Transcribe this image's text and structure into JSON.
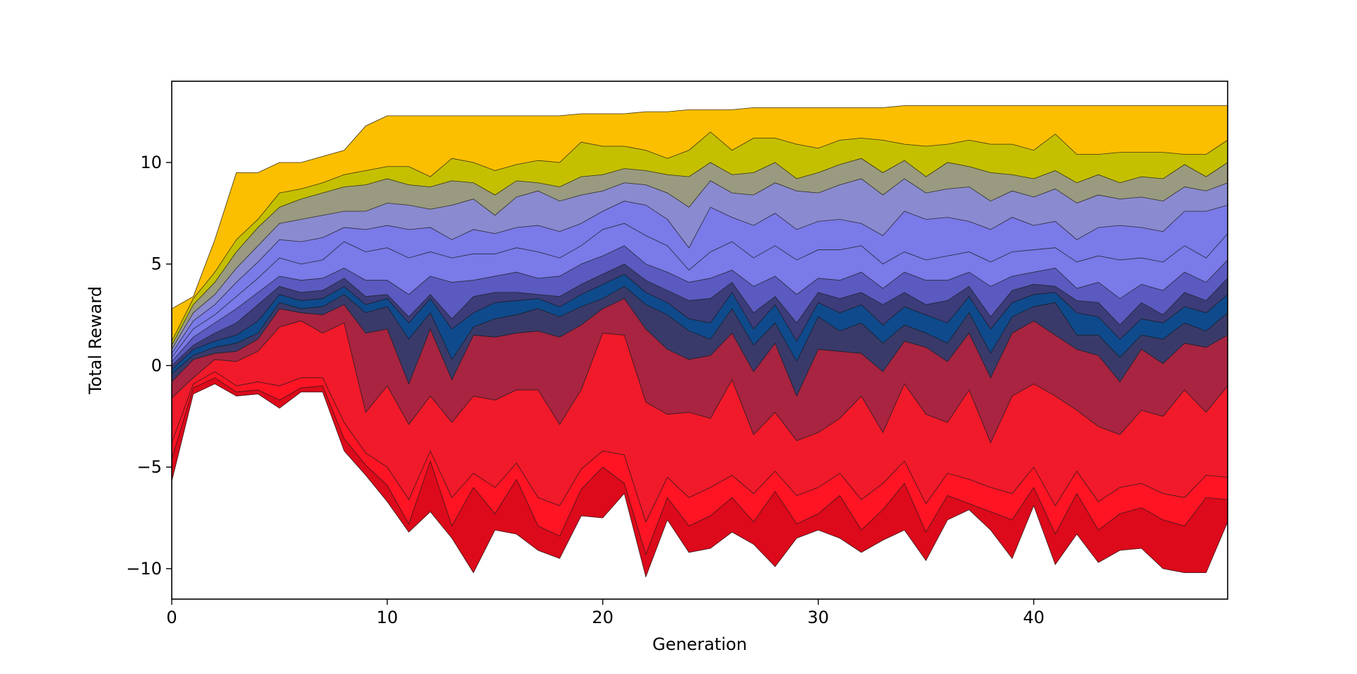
{
  "chart_data": {
    "type": "area",
    "title": "",
    "xlabel": "Generation",
    "ylabel": "Total Reward",
    "xlim": [
      0,
      49
    ],
    "ylim": [
      -11.5,
      14
    ],
    "xticks": [
      0,
      10,
      20,
      30,
      40
    ],
    "yticks": [
      -10,
      -5,
      0,
      5,
      10
    ],
    "xtick_labels": [
      "0",
      "10",
      "20",
      "30",
      "40"
    ],
    "ytick_labels": [
      "−10",
      "−5",
      "0",
      "5",
      "10"
    ],
    "grid": false,
    "legend": "none",
    "band_colors": [
      "#dc0a1a",
      "#ff1424",
      "#f01a2a",
      "#a82440",
      "#3a3a6a",
      "#0f4a8c",
      "#3c3c7a",
      "#5a5ac0",
      "#7a7ae8",
      "#7a7ae8",
      "#8a8ad0",
      "#9a9a80",
      "#c4c000",
      "#fbbf00"
    ],
    "x": [
      0,
      1,
      2,
      3,
      4,
      5,
      6,
      7,
      8,
      9,
      10,
      11,
      12,
      13,
      14,
      15,
      16,
      17,
      18,
      19,
      20,
      21,
      22,
      23,
      24,
      25,
      26,
      27,
      28,
      29,
      30,
      31,
      32,
      33,
      34,
      35,
      36,
      37,
      38,
      39,
      40,
      41,
      42,
      43,
      44,
      45,
      46,
      47,
      48,
      49
    ],
    "percentile_series": [
      {
        "values": [
          -5.7,
          -1.4,
          -0.9,
          -1.5,
          -1.4,
          -2.1,
          -1.3,
          -1.3,
          -4.2,
          -5.4,
          -6.7,
          -8.2,
          -7.2,
          -8.5,
          -10.2,
          -8.1,
          -8.3,
          -9.1,
          -9.5,
          -7.4,
          -7.5,
          -6.3,
          -10.4,
          -7.6,
          -9.2,
          -9.0,
          -8.2,
          -8.8,
          -9.9,
          -8.5,
          -8.1,
          -8.5,
          -9.2,
          -8.6,
          -8.1,
          -9.6,
          -7.6,
          -7.1,
          -8.1,
          -9.5,
          -6.9,
          -9.8,
          -8.3,
          -9.7,
          -9.1,
          -9.0,
          -10.0,
          -10.2,
          -10.2,
          -7.7
        ]
      },
      {
        "values": [
          -4.6,
          -1.1,
          -0.6,
          -1.3,
          -1.2,
          -1.7,
          -1.1,
          -1.0,
          -3.6,
          -4.9,
          -5.9,
          -7.8,
          -4.7,
          -7.9,
          -6.0,
          -7.3,
          -5.6,
          -7.9,
          -8.4,
          -6.1,
          -5.0,
          -5.8,
          -9.3,
          -6.5,
          -7.9,
          -7.4,
          -6.5,
          -7.7,
          -6.2,
          -7.8,
          -7.3,
          -6.4,
          -8.1,
          -7.1,
          -5.8,
          -8.2,
          -6.4,
          -6.8,
          -7.2,
          -7.6,
          -6.0,
          -8.3,
          -6.3,
          -8.1,
          -7.3,
          -7.0,
          -7.6,
          -7.9,
          -6.5,
          -6.6
        ]
      },
      {
        "values": [
          -3.8,
          -0.9,
          -0.3,
          -1.0,
          -0.8,
          -1.0,
          -0.6,
          -0.6,
          -2.8,
          -4.3,
          -5.0,
          -6.6,
          -4.2,
          -6.5,
          -5.3,
          -6.0,
          -4.8,
          -6.5,
          -6.9,
          -5.1,
          -4.2,
          -4.4,
          -7.7,
          -5.5,
          -6.5,
          -6.0,
          -5.4,
          -6.3,
          -5.2,
          -6.4,
          -6.0,
          -5.3,
          -6.6,
          -5.8,
          -4.7,
          -6.8,
          -5.3,
          -5.6,
          -6.0,
          -6.3,
          -5.0,
          -6.9,
          -5.2,
          -6.7,
          -6.0,
          -5.8,
          -6.3,
          -6.5,
          -5.4,
          -5.5
        ]
      },
      {
        "values": [
          -1.6,
          -0.6,
          0.3,
          0.2,
          0.7,
          1.9,
          2.2,
          1.6,
          2.1,
          -2.3,
          -1.0,
          -2.9,
          -1.5,
          -2.8,
          -1.5,
          -1.7,
          -1.2,
          -1.2,
          -2.9,
          -1.2,
          1.6,
          1.5,
          -1.8,
          -2.4,
          -2.3,
          -2.6,
          -0.7,
          -3.4,
          -2.3,
          -3.7,
          -3.3,
          -2.6,
          -1.5,
          -3.3,
          -0.9,
          -2.4,
          -2.8,
          -1.2,
          -3.8,
          -1.5,
          -0.9,
          -1.5,
          -2.2,
          -3.0,
          -3.4,
          -2.2,
          -2.5,
          -1.2,
          -2.3,
          -1.0
        ]
      },
      {
        "values": [
          -0.8,
          0.3,
          0.6,
          0.7,
          1.3,
          2.8,
          2.6,
          2.5,
          3.0,
          1.6,
          1.8,
          -0.9,
          1.8,
          -0.7,
          1.5,
          1.4,
          1.6,
          1.7,
          1.4,
          2.0,
          2.8,
          3.3,
          1.8,
          0.8,
          0.3,
          0.5,
          1.6,
          -0.3,
          1.1,
          -1.5,
          0.8,
          0.7,
          0.6,
          -0.3,
          1.2,
          0.9,
          0.2,
          1.6,
          -0.6,
          1.6,
          2.2,
          1.5,
          0.8,
          0.5,
          -0.8,
          0.8,
          0.1,
          1.1,
          0.9,
          1.5
        ]
      },
      {
        "values": [
          -0.4,
          0.5,
          0.9,
          1.1,
          1.6,
          3.1,
          2.8,
          2.9,
          3.5,
          2.6,
          2.9,
          1.3,
          2.6,
          0.3,
          1.9,
          2.3,
          2.5,
          2.8,
          2.4,
          2.9,
          3.3,
          3.9,
          3.0,
          2.5,
          1.7,
          1.3,
          2.8,
          1.0,
          2.1,
          0.2,
          2.4,
          1.7,
          2.1,
          1.1,
          2.0,
          1.6,
          1.1,
          2.6,
          0.6,
          2.4,
          2.9,
          3.1,
          1.5,
          1.5,
          0.4,
          1.5,
          1.3,
          2.1,
          1.7,
          2.6
        ]
      },
      {
        "values": [
          -0.2,
          0.8,
          1.2,
          1.5,
          2.2,
          3.5,
          3.2,
          3.3,
          3.9,
          3.0,
          3.3,
          2.1,
          3.3,
          1.8,
          2.6,
          3.1,
          3.2,
          3.3,
          2.9,
          3.5,
          4.0,
          4.5,
          3.6,
          3.1,
          2.3,
          2.1,
          3.6,
          1.8,
          3.0,
          1.2,
          3.1,
          2.6,
          3.0,
          2.0,
          2.9,
          2.5,
          2.1,
          3.4,
          1.8,
          3.1,
          3.5,
          3.6,
          2.6,
          2.4,
          1.3,
          2.3,
          2.1,
          2.9,
          2.6,
          3.5
        ]
      },
      {
        "values": [
          0.0,
          1.0,
          1.6,
          2.1,
          3.0,
          3.9,
          3.6,
          3.7,
          4.3,
          3.4,
          3.5,
          2.4,
          3.5,
          2.3,
          3.4,
          3.6,
          3.6,
          3.5,
          3.4,
          4.0,
          4.5,
          5.0,
          4.2,
          3.7,
          3.2,
          3.3,
          4.1,
          2.6,
          3.4,
          2.1,
          3.6,
          3.3,
          3.6,
          3.0,
          3.6,
          3.0,
          3.2,
          3.9,
          2.4,
          3.7,
          4.0,
          3.9,
          3.2,
          3.1,
          2.0,
          3.1,
          2.5,
          3.6,
          3.2,
          4.3
        ]
      },
      {
        "values": [
          0.2,
          1.4,
          2.1,
          2.8,
          3.6,
          4.4,
          4.2,
          4.3,
          4.8,
          4.2,
          4.2,
          3.5,
          4.4,
          4.1,
          4.2,
          4.4,
          4.6,
          4.3,
          4.4,
          5.0,
          5.4,
          5.9,
          5.0,
          4.6,
          4.1,
          4.3,
          4.7,
          3.9,
          4.4,
          3.5,
          4.3,
          4.2,
          4.6,
          3.8,
          4.6,
          4.2,
          4.2,
          4.6,
          3.9,
          4.4,
          4.6,
          4.8,
          3.8,
          4.1,
          3.3,
          4.0,
          3.7,
          4.6,
          4.1,
          5.2
        ]
      },
      {
        "values": [
          0.4,
          1.8,
          2.5,
          3.4,
          4.3,
          5.3,
          5.0,
          5.2,
          6.1,
          5.6,
          5.8,
          5.3,
          5.6,
          5.3,
          5.5,
          5.5,
          5.8,
          5.6,
          5.3,
          5.9,
          6.7,
          7.0,
          6.4,
          5.9,
          4.7,
          5.6,
          6.1,
          5.3,
          5.9,
          5.2,
          5.7,
          5.7,
          5.9,
          5.0,
          5.6,
          5.2,
          5.4,
          5.6,
          5.1,
          5.6,
          5.7,
          5.8,
          5.1,
          5.4,
          5.2,
          5.3,
          5.1,
          5.9,
          5.3,
          6.5
        ]
      },
      {
        "values": [
          0.6,
          2.2,
          3.0,
          4.1,
          5.1,
          6.2,
          6.1,
          6.3,
          6.8,
          6.7,
          6.9,
          6.7,
          6.8,
          6.2,
          6.7,
          6.5,
          6.8,
          6.9,
          6.6,
          7.0,
          7.6,
          8.1,
          7.9,
          7.2,
          5.8,
          7.8,
          7.3,
          6.9,
          7.5,
          6.7,
          7.1,
          7.2,
          7.0,
          6.4,
          7.6,
          7.2,
          7.3,
          7.1,
          6.7,
          7.3,
          6.9,
          7.1,
          6.2,
          6.8,
          6.9,
          6.8,
          6.6,
          7.6,
          7.6,
          7.9
        ]
      },
      {
        "values": [
          0.8,
          2.6,
          3.5,
          4.8,
          5.9,
          7.0,
          7.2,
          7.4,
          7.6,
          7.6,
          8.0,
          7.9,
          7.7,
          7.9,
          8.2,
          7.4,
          8.3,
          8.6,
          8.1,
          8.4,
          8.6,
          9.0,
          8.9,
          8.5,
          7.8,
          9.1,
          8.5,
          8.4,
          9.0,
          8.6,
          8.5,
          8.9,
          9.2,
          8.4,
          9.2,
          8.5,
          8.7,
          8.8,
          8.1,
          8.6,
          8.3,
          8.7,
          8.0,
          8.4,
          8.2,
          8.3,
          8.1,
          8.8,
          8.6,
          9.0
        ]
      },
      {
        "values": [
          1.0,
          3.0,
          4.1,
          5.6,
          6.8,
          7.8,
          8.2,
          8.5,
          8.8,
          8.9,
          9.2,
          8.9,
          8.8,
          9.1,
          9.0,
          8.4,
          9.1,
          9.0,
          8.8,
          9.3,
          9.4,
          9.7,
          9.6,
          9.4,
          9.3,
          10.0,
          9.4,
          9.5,
          10.0,
          9.2,
          9.5,
          9.9,
          10.2,
          9.5,
          10.1,
          9.3,
          10.0,
          9.8,
          9.5,
          9.4,
          9.2,
          9.6,
          9.0,
          9.4,
          9.0,
          9.3,
          9.2,
          9.9,
          9.3,
          10.0
        ]
      },
      {
        "values": [
          1.2,
          3.3,
          4.6,
          6.2,
          7.2,
          8.5,
          8.7,
          9.0,
          9.4,
          9.6,
          9.8,
          9.8,
          9.3,
          10.2,
          10.0,
          9.6,
          9.9,
          10.1,
          10.0,
          11.0,
          10.8,
          10.8,
          10.6,
          10.2,
          10.6,
          11.5,
          10.6,
          11.2,
          11.2,
          10.9,
          10.7,
          11.1,
          11.2,
          11.1,
          10.9,
          10.8,
          10.9,
          11.1,
          10.9,
          10.9,
          10.6,
          11.4,
          10.4,
          10.4,
          10.5,
          10.5,
          10.5,
          10.4,
          10.4,
          11.1
        ]
      },
      {
        "values": [
          2.8,
          3.4,
          6.2,
          9.5,
          9.5,
          10.0,
          10.0,
          10.3,
          10.6,
          11.8,
          12.3,
          12.3,
          12.3,
          12.3,
          12.3,
          12.3,
          12.3,
          12.3,
          12.3,
          12.4,
          12.4,
          12.4,
          12.5,
          12.5,
          12.6,
          12.6,
          12.6,
          12.7,
          12.7,
          12.7,
          12.7,
          12.7,
          12.7,
          12.7,
          12.8,
          12.8,
          12.8,
          12.8,
          12.8,
          12.8,
          12.8,
          12.8,
          12.8,
          12.8,
          12.8,
          12.8,
          12.8,
          12.8,
          12.8,
          12.8
        ]
      }
    ]
  }
}
